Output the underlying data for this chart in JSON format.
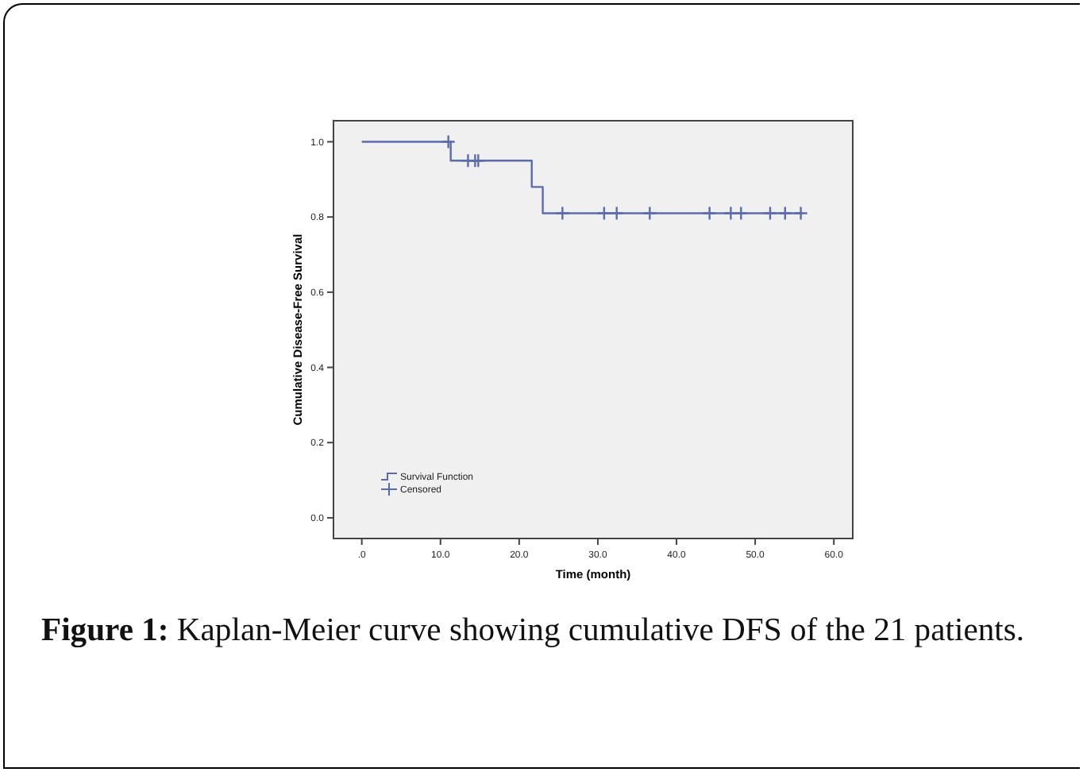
{
  "chart_data": {
    "type": "scatter",
    "xlabel": "Time (month)",
    "ylabel": "Cumulative Disease-Free Survival",
    "xlim": [
      -3.6,
      62.4
    ],
    "ylim": [
      -0.055,
      1.056
    ],
    "xticks": [
      {
        "value": 0,
        "label": ".0"
      },
      {
        "value": 10,
        "label": "10.0"
      },
      {
        "value": 20,
        "label": "20.0"
      },
      {
        "value": 30,
        "label": "30.0"
      },
      {
        "value": 40,
        "label": "40.0"
      },
      {
        "value": 50,
        "label": "50.0"
      },
      {
        "value": 60,
        "label": "60.0"
      }
    ],
    "yticks": [
      {
        "value": 0,
        "label": "0.0"
      },
      {
        "value": 0.2,
        "label": "0.2"
      },
      {
        "value": 0.4,
        "label": "0.4"
      },
      {
        "value": 0.6,
        "label": "0.6"
      },
      {
        "value": 0.8,
        "label": "0.8"
      },
      {
        "value": 1,
        "label": "1.0"
      }
    ],
    "grid": false,
    "legend": "bottom left",
    "series": [
      {
        "name": "Survival Function",
        "type": "step",
        "color": "#5a6cb0",
        "marker": "none",
        "x": [
          0,
          11.3,
          21.6,
          23.0,
          56.0
        ],
        "values": [
          1.0,
          0.95,
          0.88,
          0.81,
          0.81
        ]
      },
      {
        "name": "Censored",
        "color": "#5a6cb0",
        "marker": "cross",
        "x": [
          11.0,
          13.5,
          14.4,
          14.8,
          25.5,
          30.8,
          32.4,
          36.6,
          44.2,
          46.9,
          48.2,
          51.9,
          53.8,
          55.8
        ],
        "values": [
          1.0,
          0.95,
          0.95,
          0.95,
          0.81,
          0.81,
          0.81,
          0.81,
          0.81,
          0.81,
          0.81,
          0.81,
          0.81,
          0.81
        ]
      }
    ],
    "annotations": [
      "Figure 1: Kaplan-Meier curve showing cumulative DFS of the 21 patients."
    ]
  }
}
